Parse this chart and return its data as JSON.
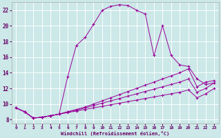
{
  "xlabel": "Windchill (Refroidissement éolien,°C)",
  "background_color": "#cce8e8",
  "line_color": "#990099",
  "xlim": [
    -0.5,
    23.5
  ],
  "ylim": [
    7.5,
    23.0
  ],
  "yticks": [
    8,
    10,
    12,
    14,
    16,
    18,
    20,
    22
  ],
  "xticks": [
    0,
    1,
    2,
    3,
    4,
    5,
    6,
    7,
    8,
    9,
    10,
    11,
    12,
    13,
    14,
    15,
    16,
    17,
    18,
    19,
    20,
    21,
    22,
    23
  ],
  "series": [
    {
      "x": [
        0,
        1,
        2,
        3,
        4,
        5,
        6,
        7,
        8,
        9,
        10,
        11,
        12,
        13,
        14,
        15,
        16,
        17,
        18,
        19,
        20,
        21,
        22,
        23
      ],
      "y": [
        9.5,
        9.0,
        8.2,
        8.3,
        8.5,
        8.7,
        13.5,
        17.5,
        18.5,
        20.2,
        22.0,
        22.5,
        22.7,
        22.6,
        22.0,
        21.5,
        16.2,
        20.0,
        16.2,
        15.0,
        14.8,
        13.2,
        12.5,
        12.7
      ]
    },
    {
      "x": [
        0,
        1,
        2,
        3,
        4,
        5,
        6,
        7,
        8,
        9,
        10,
        11,
        12,
        13,
        14,
        15,
        16,
        17,
        18,
        19,
        20,
        21,
        22,
        23
      ],
      "y": [
        9.5,
        9.0,
        8.2,
        8.3,
        8.5,
        8.7,
        9.0,
        9.3,
        9.6,
        10.0,
        10.4,
        10.8,
        11.2,
        11.6,
        12.0,
        12.4,
        12.8,
        13.2,
        13.6,
        14.0,
        14.5,
        12.2,
        12.8,
        13.0
      ]
    },
    {
      "x": [
        0,
        1,
        2,
        3,
        4,
        5,
        6,
        7,
        8,
        9,
        10,
        11,
        12,
        13,
        14,
        15,
        16,
        17,
        18,
        19,
        20,
        21,
        22,
        23
      ],
      "y": [
        9.5,
        9.0,
        8.2,
        8.3,
        8.5,
        8.7,
        9.0,
        9.2,
        9.5,
        9.8,
        10.1,
        10.4,
        10.7,
        11.0,
        11.3,
        11.6,
        11.9,
        12.2,
        12.5,
        12.8,
        13.2,
        11.5,
        12.0,
        12.7
      ]
    },
    {
      "x": [
        0,
        1,
        2,
        3,
        4,
        5,
        6,
        7,
        8,
        9,
        10,
        11,
        12,
        13,
        14,
        15,
        16,
        17,
        18,
        19,
        20,
        21,
        22,
        23
      ],
      "y": [
        9.5,
        9.0,
        8.2,
        8.3,
        8.5,
        8.7,
        8.9,
        9.1,
        9.3,
        9.5,
        9.7,
        9.9,
        10.1,
        10.3,
        10.5,
        10.7,
        10.9,
        11.1,
        11.3,
        11.5,
        11.8,
        10.8,
        11.3,
        12.0
      ]
    }
  ]
}
